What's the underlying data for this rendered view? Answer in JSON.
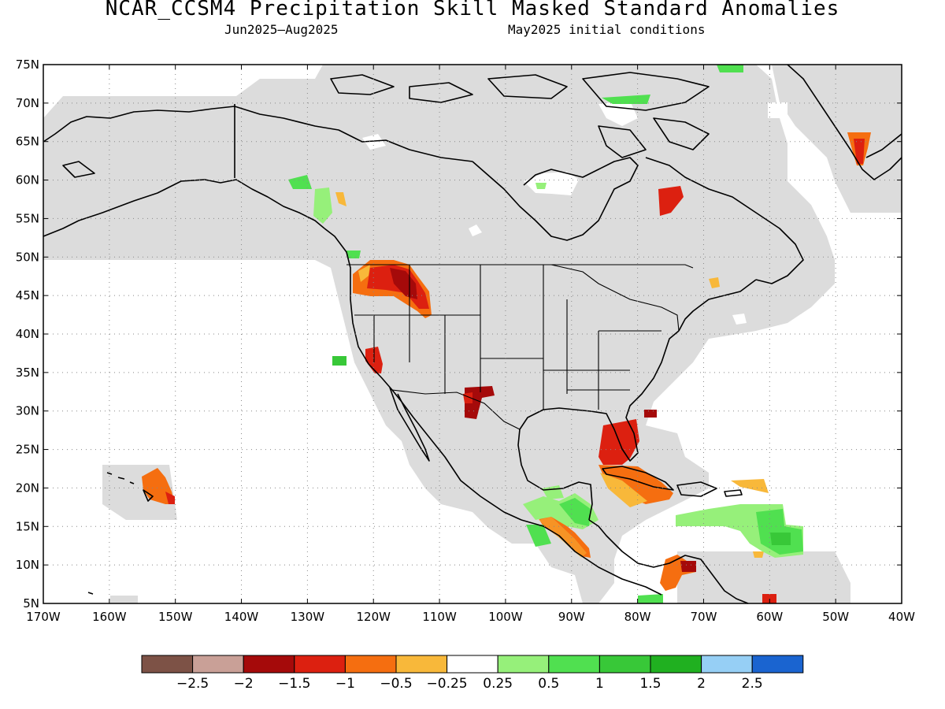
{
  "header": {
    "title": "NCAR_CCSM4 Precipitation Skill Masked Standard Anomalies",
    "period": "Jun2025–Aug2025",
    "init": "May2025 initial conditions"
  },
  "map": {
    "lat_labels": [
      "75N",
      "70N",
      "65N",
      "60N",
      "55N",
      "50N",
      "45N",
      "40N",
      "35N",
      "30N",
      "25N",
      "20N",
      "15N",
      "10N",
      "5N"
    ],
    "lon_labels": [
      "170W",
      "160W",
      "150W",
      "140W",
      "130W",
      "120W",
      "110W",
      "100W",
      "90W",
      "80W",
      "70W",
      "60W",
      "50W",
      "40W"
    ],
    "lat_range": [
      5,
      75
    ],
    "lon_range": [
      -170,
      -40
    ],
    "mask_color": "#dcdcdc",
    "land_outline_color": "#000000"
  },
  "colorbar": {
    "colors": [
      "#7d5246",
      "#c9a097",
      "#a50a0a",
      "#dc2010",
      "#f56e10",
      "#f8b83a",
      "#ffffff",
      "#96f07a",
      "#50e050",
      "#38c838",
      "#20b020",
      "#96cff5",
      "#1a64d0"
    ],
    "labels": [
      "−2.5",
      "−2",
      "−1.5",
      "−1",
      "−0.5",
      "−0.25",
      "0.25",
      "0.5",
      "1",
      "1.5",
      "2",
      "2.5"
    ]
  }
}
